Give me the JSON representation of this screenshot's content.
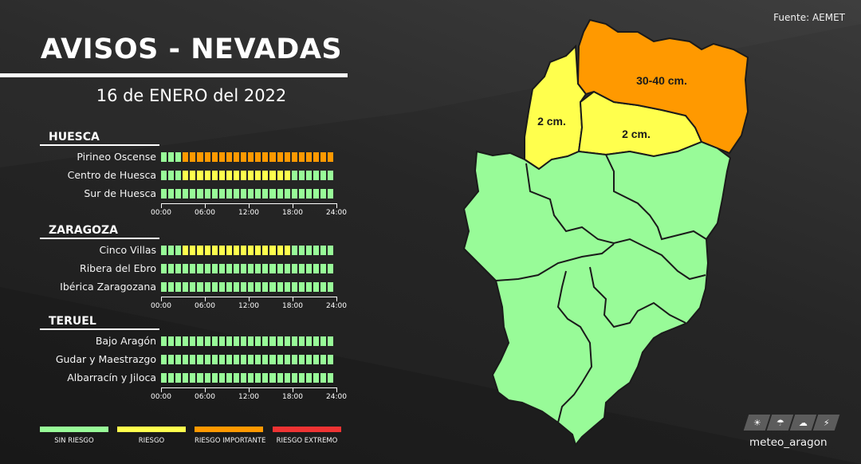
{
  "source": "Fuente: AEMET",
  "title": "AVISOS - NEVADAS",
  "date": "16 de ENERO del 2022",
  "colors": {
    "sin": "#98fb98",
    "riesgo": "#ffff4d",
    "importante": "#ff9900",
    "extremo": "#ee3333"
  },
  "time_labels": [
    "00:00",
    "06:00",
    "12:00",
    "18:00",
    "24:00"
  ],
  "regions": [
    {
      "name": "HUESCA",
      "zones": [
        {
          "name": "Pirineo Oscense",
          "hours": "000ooooooooooooooooooooo"
        },
        {
          "name": "Centro de Huesca",
          "hours": "000yyyyyyyyyyyyyyy000000"
        },
        {
          "name": "Sur de Huesca",
          "hours": "000000000000000000000000"
        }
      ]
    },
    {
      "name": "ZARAGOZA",
      "zones": [
        {
          "name": "Cinco Villas",
          "hours": "000yyyyyyyyyyyyyyy000000"
        },
        {
          "name": "Ribera del Ebro",
          "hours": "000000000000000000000000"
        },
        {
          "name": "Ibérica Zaragozana",
          "hours": "000000000000000000000000"
        }
      ]
    },
    {
      "name": "TERUEL",
      "zones": [
        {
          "name": "Bajo Aragón",
          "hours": "000000000000000000000000"
        },
        {
          "name": "Gudar y Maestrazgo",
          "hours": "000000000000000000000000"
        },
        {
          "name": "Albarracín y Jiloca",
          "hours": "000000000000000000000000"
        }
      ]
    }
  ],
  "legend": [
    {
      "label": "SIN RIESGO",
      "color": "#98fb98"
    },
    {
      "label": "RIESGO",
      "color": "#ffff4d"
    },
    {
      "label": "RIESGO IMPORTANTE",
      "color": "#ff9900"
    },
    {
      "label": "RIESGO EXTREMO",
      "color": "#ee3333"
    }
  ],
  "map_labels": {
    "pirineo": "30-40 cm.",
    "oeste": "2 cm.",
    "centro": "2 cm."
  },
  "brand": {
    "name": "meteo_aragon",
    "icons": [
      "sun-icon",
      "rain-cloud-icon",
      "partly-cloudy-icon",
      "storm-cloud-icon"
    ]
  }
}
